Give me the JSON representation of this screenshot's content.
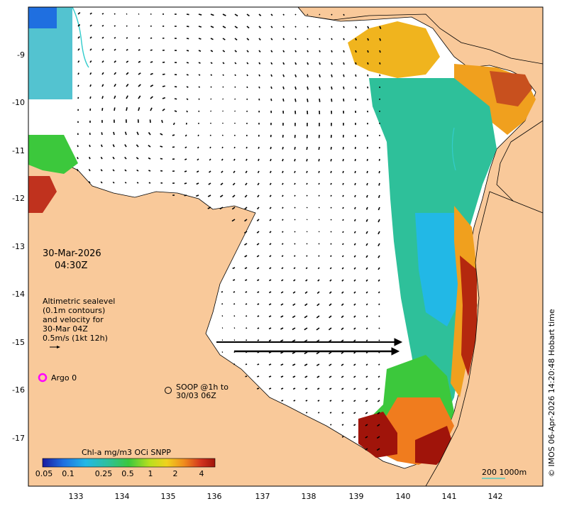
{
  "map": {
    "date_label": "30-Mar-2026",
    "time_label": "04:30Z",
    "legend_lines": [
      "Altimetric sealevel",
      "(0.1m contours)",
      "and velocity for",
      "30-Mar 04Z",
      "0.5m/s (1kt 12h)"
    ],
    "argo_label": "Argo 0",
    "soop_lines": [
      "SOOP @1h to",
      "30/03 06Z"
    ],
    "colorbar_title": "Chl-a mg/m3 OCi SNPP",
    "colorbar_ticks": [
      "0.05",
      "0.1",
      "0.25",
      "0.5",
      "1",
      "2",
      "4"
    ],
    "scale_label": "200  1000m",
    "copyright": "© IMOS 06-Apr-2026 14:20:48 Hobart time",
    "x_ticks": [
      "133",
      "134",
      "135",
      "136",
      "137",
      "138",
      "139",
      "140",
      "141",
      "142"
    ],
    "y_ticks": [
      "-9",
      "-10",
      "-11",
      "-12",
      "-13",
      "-14",
      "-15",
      "-16",
      "-17"
    ],
    "colors": {
      "land": "#f9c99a",
      "ocean": "#ffffff",
      "argo": "#ff00ff",
      "contour": "#33cccc"
    }
  }
}
